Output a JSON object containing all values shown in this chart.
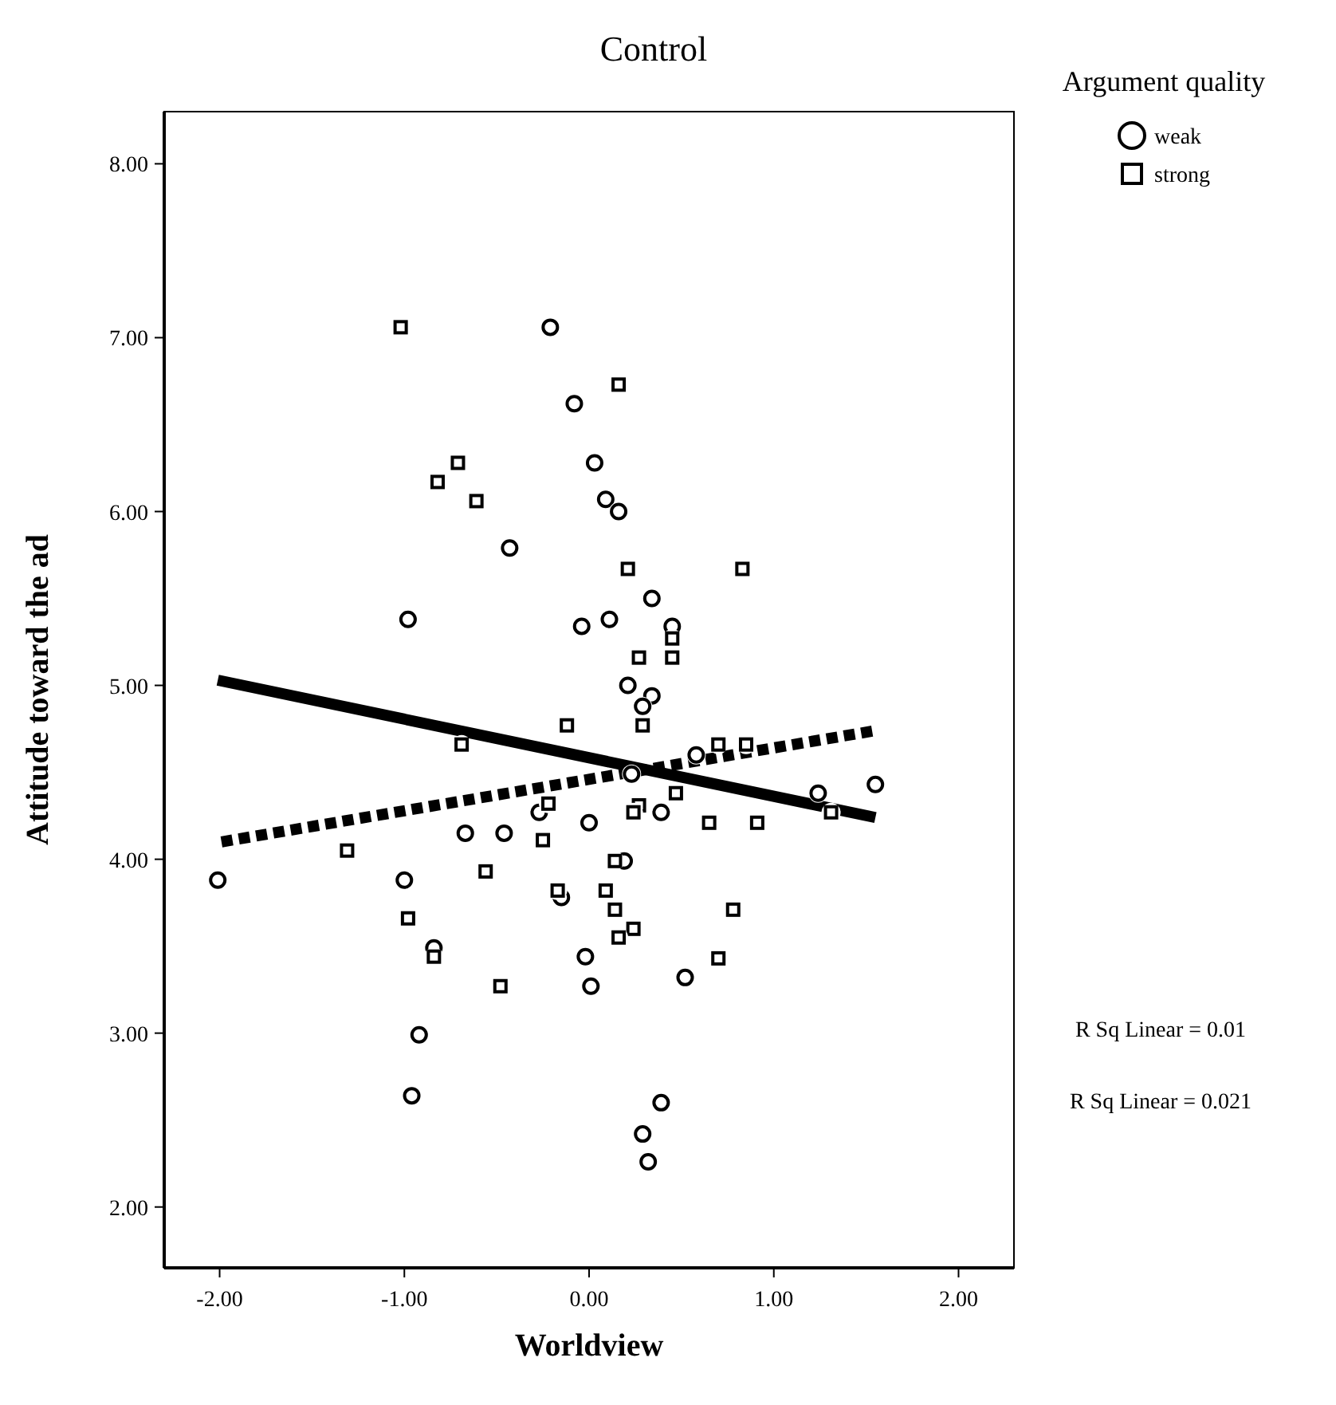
{
  "chart_data": {
    "type": "scatter",
    "title": "Control",
    "xlabel": "Worldview",
    "ylabel": "Attitude toward the ad",
    "legend_title": "Argument quality",
    "legend": "top right",
    "grid": false,
    "xlim": [
      -2.3,
      2.3
    ],
    "ylim": [
      1.65,
      8.3
    ],
    "xticks": [
      {
        "value": -2,
        "label": "-2.00"
      },
      {
        "value": -1,
        "label": "-1.00"
      },
      {
        "value": 0,
        "label": "0.00"
      },
      {
        "value": 1,
        "label": "1.00"
      },
      {
        "value": 2,
        "label": "2.00"
      }
    ],
    "yticks": [
      {
        "value": 2,
        "label": "2.00"
      },
      {
        "value": 3,
        "label": "3.00"
      },
      {
        "value": 4,
        "label": "4.00"
      },
      {
        "value": 5,
        "label": "5.00"
      },
      {
        "value": 6,
        "label": "6.00"
      },
      {
        "value": 7,
        "label": "7.00"
      },
      {
        "value": 8,
        "label": "8.00"
      }
    ],
    "series": [
      {
        "name": "weak",
        "marker": "circle",
        "color": "#000000",
        "x": [
          -0.21,
          -0.08,
          -0.43,
          -0.98,
          -0.04,
          0.03,
          0.09,
          0.16,
          0.34,
          0.11,
          0.45,
          0.21,
          0.34,
          0.29,
          0.58,
          -2.01,
          -1.0,
          -0.84,
          -0.92,
          -0.96,
          -0.67,
          -0.46,
          -0.27,
          -0.15,
          -0.02,
          0.01,
          0.0,
          0.23,
          0.39,
          0.19,
          0.52,
          0.39,
          0.29,
          0.32,
          1.24,
          1.55
        ],
        "values": [
          7.06,
          6.62,
          5.79,
          5.38,
          5.34,
          6.28,
          6.07,
          6.0,
          5.5,
          5.38,
          5.34,
          5.0,
          4.94,
          4.88,
          4.6,
          3.88,
          3.88,
          3.49,
          2.99,
          2.64,
          4.15,
          4.15,
          4.27,
          3.78,
          3.44,
          3.27,
          4.21,
          4.49,
          4.27,
          3.99,
          3.32,
          2.6,
          2.42,
          2.26,
          4.38,
          4.43
        ]
      },
      {
        "name": "strong",
        "marker": "square",
        "color": "#000000",
        "x": [
          -1.02,
          -0.71,
          -0.82,
          -0.61,
          -0.12,
          -0.69,
          0.16,
          0.21,
          0.83,
          0.45,
          0.27,
          0.45,
          0.29,
          0.7,
          0.85,
          -1.31,
          -0.98,
          -0.84,
          -0.22,
          -0.25,
          -0.56,
          -0.17,
          -0.48,
          0.27,
          0.24,
          0.47,
          0.65,
          0.91,
          0.14,
          0.09,
          0.14,
          0.78,
          0.24,
          0.16,
          0.7,
          1.31
        ],
        "values": [
          7.06,
          6.28,
          6.17,
          6.06,
          4.77,
          4.66,
          6.73,
          5.67,
          5.67,
          5.27,
          5.16,
          5.16,
          4.77,
          4.66,
          4.66,
          4.05,
          3.66,
          3.44,
          4.32,
          4.11,
          3.93,
          3.82,
          3.27,
          4.31,
          4.27,
          4.38,
          4.21,
          4.21,
          3.99,
          3.82,
          3.71,
          3.71,
          3.6,
          3.55,
          3.43,
          4.27
        ]
      },
      {
        "type": "line",
        "line_style": "solid",
        "color": "#000000",
        "x": [
          -2.01,
          1.55
        ],
        "values": [
          5.03,
          4.24
        ]
      },
      {
        "type": "line",
        "line_style": "dotted",
        "color": "#000000",
        "x": [
          -1.99,
          1.55
        ],
        "values": [
          4.1,
          4.74
        ]
      }
    ],
    "annotations": [
      "R Sq Linear = 0.01",
      "R Sq Linear = 0.021"
    ]
  }
}
